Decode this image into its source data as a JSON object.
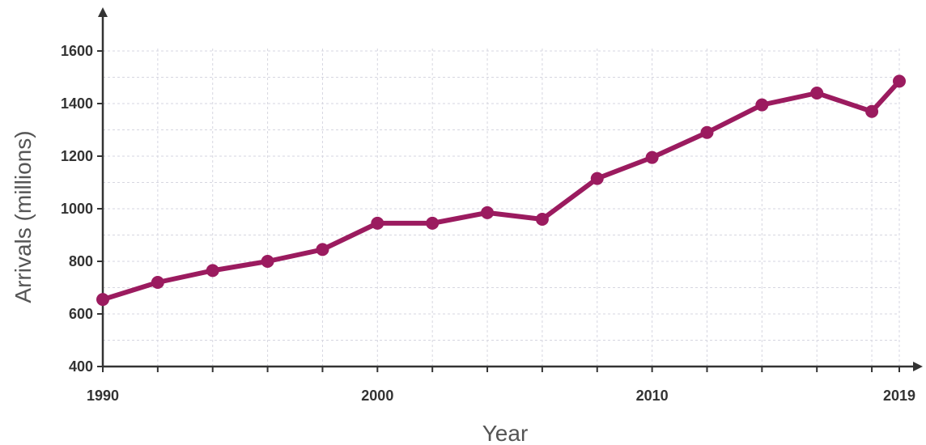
{
  "chart_data": {
    "type": "line",
    "title": "",
    "xlabel": "Year",
    "ylabel": "Arrivals (millions)",
    "xlim": [
      1990,
      2019
    ],
    "ylim": [
      400,
      1700
    ],
    "x_ticks": [
      1990,
      2000,
      2010,
      2019
    ],
    "y_ticks": [
      400,
      600,
      800,
      1000,
      1200,
      1400,
      1600
    ],
    "x_grid": [
      1990,
      1992,
      1994,
      1996,
      1998,
      2000,
      2002,
      2004,
      2006,
      2008,
      2010,
      2012,
      2014,
      2016,
      2018,
      2019
    ],
    "y_grid": [
      400,
      500,
      600,
      700,
      800,
      900,
      1000,
      1100,
      1200,
      1300,
      1400,
      1500,
      1600
    ],
    "grid": true,
    "legend": false,
    "series": [
      {
        "color": "#9b1b5f",
        "x": [
          1990,
          1992,
          1994,
          1996,
          1998,
          2000,
          2002,
          2004,
          2006,
          2008,
          2010,
          2012,
          2014,
          2016,
          2018,
          2019
        ],
        "y": [
          655,
          720,
          765,
          800,
          845,
          945,
          945,
          985,
          960,
          1115,
          1195,
          1290,
          1395,
          1440,
          1370,
          1485
        ]
      }
    ]
  }
}
